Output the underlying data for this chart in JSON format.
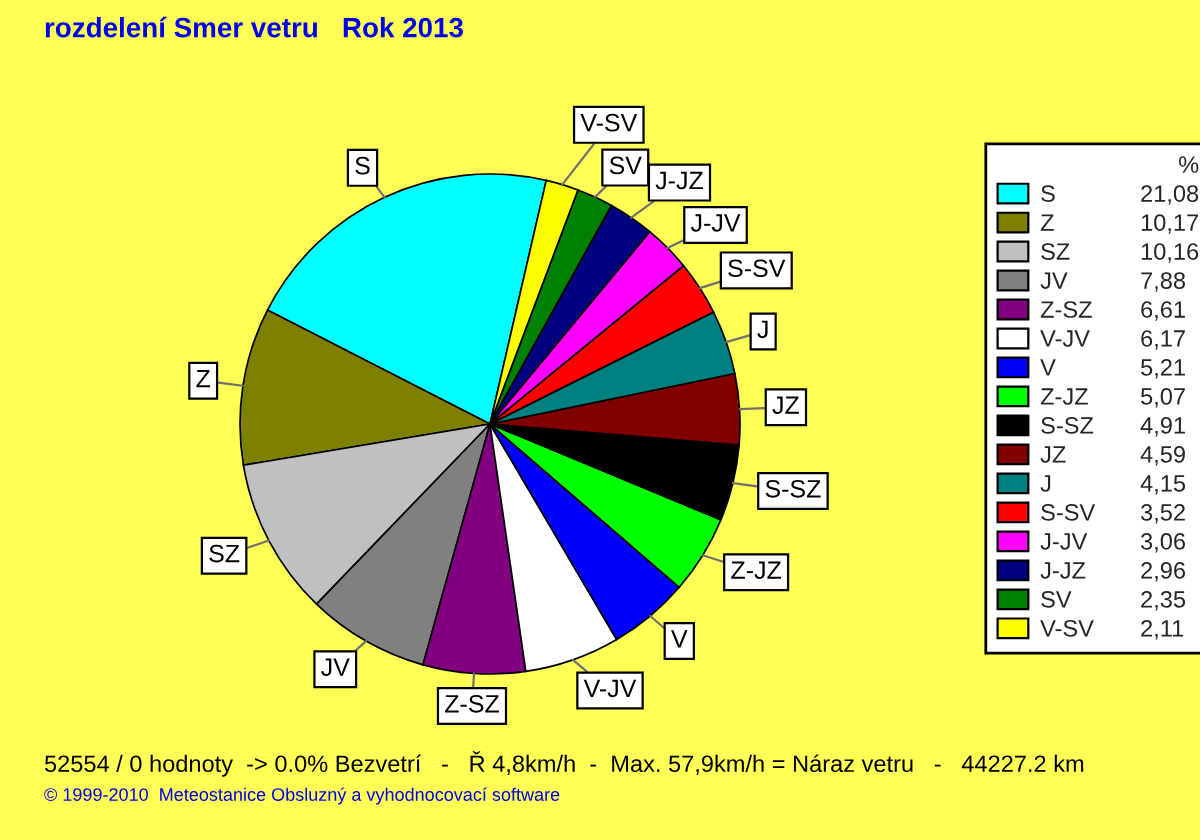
{
  "chart_data": {
    "type": "pie",
    "title": "rozdelení Smer vetru   Rok 2013",
    "categories": [
      "S",
      "Z",
      "SZ",
      "JV",
      "Z-SZ",
      "V-JV",
      "V",
      "Z-JZ",
      "S-SZ",
      "JZ",
      "J",
      "S-SV",
      "J-JV",
      "J-JZ",
      "SV",
      "V-SV"
    ],
    "values": [
      21.08,
      10.17,
      10.16,
      7.88,
      6.61,
      6.17,
      5.21,
      5.07,
      4.91,
      4.59,
      4.15,
      3.52,
      3.06,
      2.96,
      2.35,
      2.11
    ],
    "value_labels": [
      "21,08",
      "10,17",
      "10,16",
      "7,88",
      "6,61",
      "6,17",
      "5,21",
      "5,07",
      "4,91",
      "4,59",
      "4,15",
      "3,52",
      "3,06",
      "2,96",
      "2,35",
      "2,11"
    ],
    "colors": [
      "#00ffff",
      "#808000",
      "#c0c0c0",
      "#808080",
      "#800080",
      "#ffffff",
      "#0000ff",
      "#00ff00",
      "#000000",
      "#800000",
      "#008080",
      "#ff0000",
      "#ff00ff",
      "#000080",
      "#008000",
      "#ffff00"
    ],
    "legend": "right",
    "legend_title": "%",
    "annotations": [
      "52554 / 0 hodnoty  -> 0.0% Bezvetrí   -   Ř 4,8km/h  -  Max. 57,9km/h = Náraz vetru   -   44227.2 km",
      "© 1999-2010  Meteostanice Obsluzný a vyhodnocovací software"
    ]
  }
}
